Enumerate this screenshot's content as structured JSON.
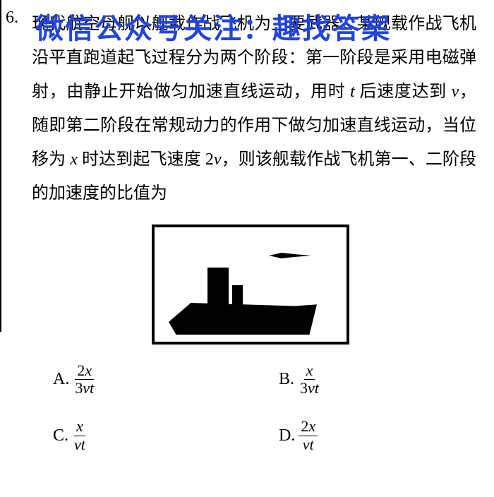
{
  "question": {
    "number": "6.",
    "watermark": "微信公众号关注：趣找答案",
    "text_line1": "现代航空母舰以舰载作战飞机为主要武器。某舰",
    "text_full": "载作战飞机沿平直跑道起飞过程分为两个阶段：第一阶段是采用电磁弹射，由静止开始做匀加速直线运动，用时 ",
    "text_var_t": "t",
    "text_mid1": " 后速度达到 ",
    "text_var_v": "v",
    "text_mid2": "，随即第二阶段在常规动力的作用下做匀加速直线运动，当位移为 ",
    "text_var_x": "x",
    "text_mid3": " 时达到起飞速度 2",
    "text_var_v2": "v",
    "text_end": "，则该舰载作战飞机第一、二阶段的加速度的比值为"
  },
  "options": {
    "a": {
      "label": "A.",
      "num": "2x",
      "den_pre": "3",
      "den_v": "v",
      "den_t": "t"
    },
    "b": {
      "label": "B.",
      "num": "x",
      "den_pre": "3",
      "den_v": "v",
      "den_t": "t"
    },
    "c": {
      "label": "C.",
      "num": "x",
      "den_pre": "",
      "den_v": "v",
      "den_t": "t"
    },
    "d": {
      "label": "D.",
      "num": "2x",
      "den_pre": "",
      "den_v": "v",
      "den_t": "t"
    }
  },
  "colors": {
    "text": "#000000",
    "watermark": "#2244dd",
    "background": "#ffffff"
  },
  "typography": {
    "body_fontsize": 24,
    "watermark_fontsize": 40,
    "line_height": 2.0
  }
}
